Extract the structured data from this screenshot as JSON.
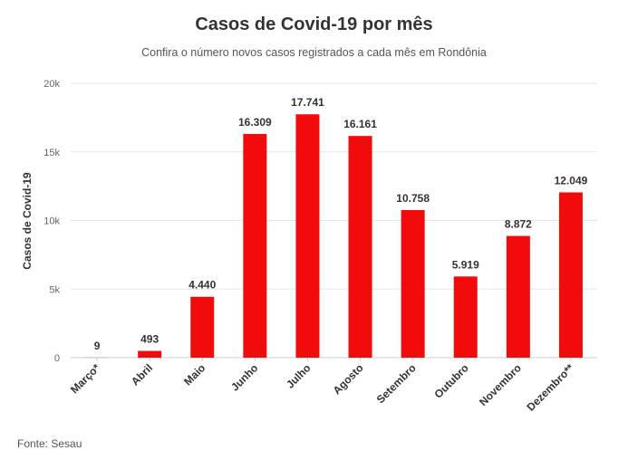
{
  "chart_data": {
    "type": "bar",
    "title": "Casos de Covid-19 por mês",
    "subtitle": "Confira o número novos casos registrados a cada mês em Rondônia",
    "ylabel": "Casos de Covid-19",
    "xlabel": "",
    "categories": [
      "Março*",
      "Abril",
      "Maio",
      "Junho",
      "Julho",
      "Agosto",
      "Setembro",
      "Outubro",
      "Novembro",
      "Dezembro**"
    ],
    "values": [
      9,
      493,
      4440,
      16309,
      17741,
      16161,
      10758,
      5919,
      8872,
      12049
    ],
    "value_labels": [
      "9",
      "493",
      "4.440",
      "16.309",
      "17.741",
      "16.161",
      "10.758",
      "5.919",
      "8.872",
      "12.049"
    ],
    "ylim": [
      0,
      20000
    ],
    "yticks": [
      0,
      5000,
      10000,
      15000,
      20000
    ],
    "ytick_labels": [
      "0",
      "5k",
      "10k",
      "15k",
      "20k"
    ],
    "grid": true,
    "bar_color": "#f10b0b",
    "source": "Fonte: Sesau"
  }
}
